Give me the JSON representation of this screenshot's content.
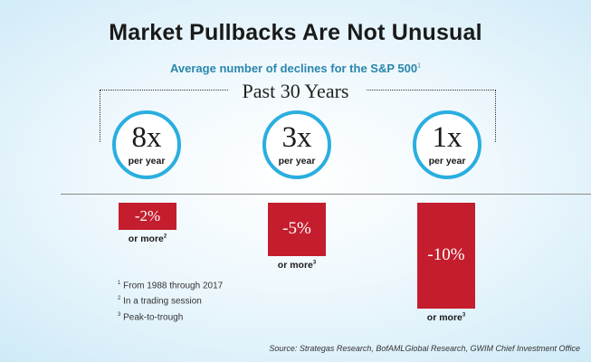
{
  "chart_data": {
    "type": "bar",
    "title": "Market Pullbacks Are Not Unusual",
    "subtitle": "Average number of declines for the S&P 500",
    "subtitle_note": "1",
    "period_label": "Past 30 Years",
    "categories": [
      "-2%",
      "-5%",
      "-10%"
    ],
    "frequency_values": [
      "8x",
      "3x",
      "1x"
    ],
    "frequency_unit": "per year",
    "values": [
      8,
      3,
      1
    ],
    "decline_values": [
      2,
      5,
      10
    ],
    "bar_labels": [
      "-2%",
      "-5%",
      "-10%"
    ],
    "qualifier": "or more",
    "qualifier_notes": [
      "2",
      "3",
      "3"
    ]
  },
  "footnotes": [
    {
      "mark": "1",
      "text": "From 1988 through 2017"
    },
    {
      "mark": "2",
      "text": "In a trading session"
    },
    {
      "mark": "3",
      "text": "Peak-to-trough"
    }
  ],
  "source": "Source: Strategas Research, BofAMLGlobal Research, GWIM Chief Investment Office",
  "colors": {
    "accent": "#2aaee0",
    "bar": "#c41e2e",
    "subtitle": "#2a86ad"
  }
}
